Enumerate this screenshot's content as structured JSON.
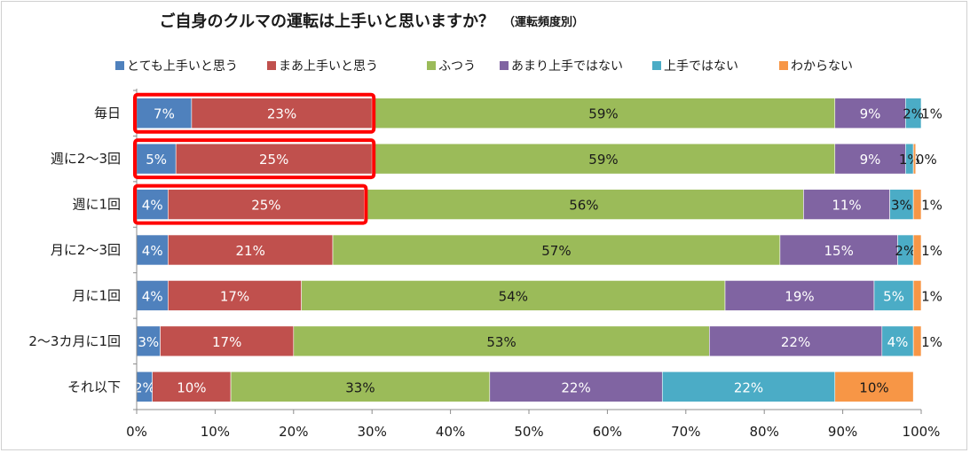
{
  "chart_data": {
    "type": "bar",
    "orientation": "horizontal",
    "stacked": true,
    "title": "ご自身のクルマの運転は上手いと思いますか？",
    "subtitle": "（運転頻度別）",
    "categories": [
      "毎日",
      "週に2～3回",
      "週に1回",
      "月に2～3回",
      "月に1回",
      "2～3カ月に1回",
      "それ以下"
    ],
    "series": [
      {
        "name": "とても上手いと思う",
        "color": "#4f81bd",
        "values": [
          7,
          5,
          4,
          4,
          4,
          3,
          2
        ],
        "labels": [
          "7%",
          "5%",
          "4%",
          "4%",
          "4%",
          "3%",
          "2%"
        ]
      },
      {
        "name": "まあ上手いと思う",
        "color": "#c0504d",
        "values": [
          23,
          25,
          25,
          21,
          17,
          17,
          10
        ],
        "labels": [
          "23%",
          "25%",
          "25%",
          "21%",
          "17%",
          "17%",
          "10%"
        ]
      },
      {
        "name": "ふつう",
        "color": "#9bbb59",
        "values": [
          59,
          59,
          56,
          57,
          54,
          53,
          33
        ],
        "labels": [
          "59%",
          "59%",
          "56%",
          "57%",
          "54%",
          "53%",
          "33%"
        ]
      },
      {
        "name": "あまり上手ではない",
        "color": "#8064a2",
        "values": [
          9,
          9,
          11,
          15,
          19,
          22,
          22
        ],
        "labels": [
          "9%",
          "9%",
          "11%",
          "15%",
          "19%",
          "22%",
          "22%"
        ]
      },
      {
        "name": "上手ではない",
        "color": "#4bacc6",
        "values": [
          2,
          1,
          3,
          2,
          5,
          4,
          22
        ],
        "labels": [
          "2%",
          "1%",
          "3%",
          "2%",
          "5%",
          "4%",
          "22%"
        ]
      },
      {
        "name": "わからない",
        "color": "#f79646",
        "values": [
          1,
          0.3,
          1,
          1,
          1,
          1,
          10
        ],
        "labels": [
          "1%",
          "0%",
          "1%",
          "1%",
          "1%",
          "1%",
          "10%"
        ]
      }
    ],
    "xlim": [
      0,
      100
    ],
    "xticks": [
      "0%",
      "10%",
      "20%",
      "30%",
      "40%",
      "50%",
      "60%",
      "70%",
      "80%",
      "90%",
      "100%"
    ],
    "legend_position": "top",
    "highlight": {
      "rows": [
        0,
        1,
        2
      ],
      "series": [
        0,
        1
      ],
      "color": "#ff0000"
    }
  }
}
